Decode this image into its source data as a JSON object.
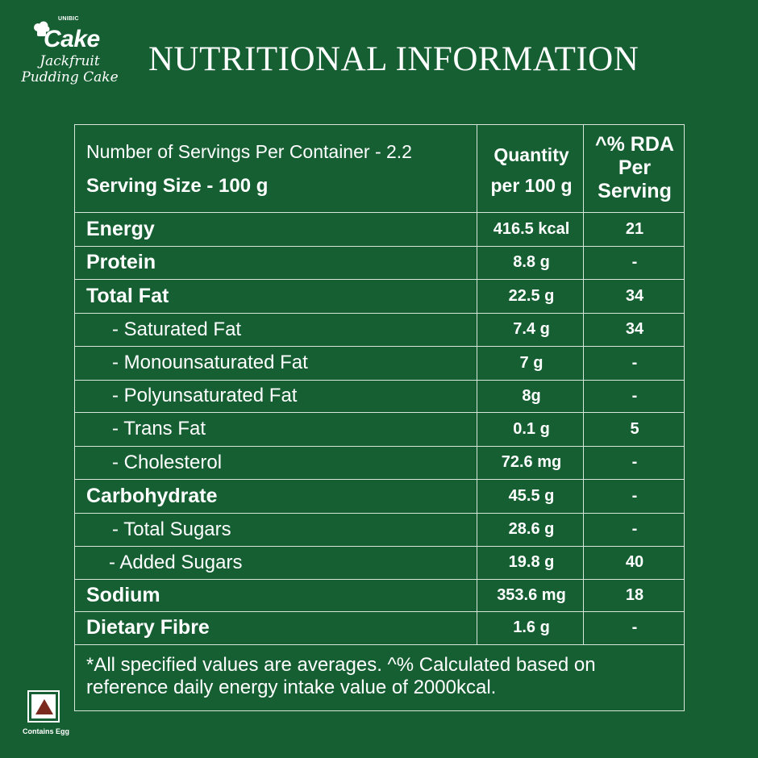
{
  "brand": {
    "company": "UNIBIC",
    "name": "Cake",
    "product_line1": "Jackfruit",
    "product_line2": "Pudding Cake"
  },
  "title": "NUTRITIONAL INFORMATION",
  "header": {
    "servings": "Number of Servings Per Container - 2.2",
    "serving_size": "Serving Size - 100 g",
    "quantity_line1": "Quantity",
    "quantity_line2": "per 100 g",
    "rda_line1": "^% RDA",
    "rda_line2": "Per",
    "rda_line3": "Serving"
  },
  "rows": [
    {
      "nutrient": "Energy",
      "quantity": "416.5 kcal",
      "rda": "21"
    },
    {
      "nutrient": "Protein",
      "quantity": "8.8 g",
      "rda": "-"
    },
    {
      "nutrient": "Total Fat",
      "quantity": "22.5 g",
      "rda": "34"
    },
    {
      "nutrient": "- Saturated Fat",
      "quantity": "7.4 g",
      "rda": "34"
    },
    {
      "nutrient": "- Monounsaturated Fat",
      "quantity": "7 g",
      "rda": "-"
    },
    {
      "nutrient": "- Polyunsaturated Fat",
      "quantity": "8g",
      "rda": "-"
    },
    {
      "nutrient": "- Trans Fat",
      "quantity": "0.1 g",
      "rda": "5"
    },
    {
      "nutrient": "- Cholesterol",
      "quantity": "72.6 mg",
      "rda": "-"
    },
    {
      "nutrient": "Carbohydrate",
      "quantity": "45.5 g",
      "rda": "-"
    },
    {
      "nutrient": "- Total Sugars",
      "quantity": "28.6 g",
      "rda": "-"
    },
    {
      "nutrient": "- Added Sugars",
      "quantity": "19.8 g",
      "rda": "40"
    },
    {
      "nutrient": "Sodium",
      "quantity": "353.6 mg",
      "rda": "18"
    },
    {
      "nutrient": "Dietary Fibre",
      "quantity": "1.6 g",
      "rda": "-"
    }
  ],
  "footnote": "*All specified values are averages. ^% Calculated based on reference daily energy intake value of 2000kcal.",
  "badge": {
    "label": "Contains Egg",
    "icon": "non-veg-triangle-icon"
  },
  "colors": {
    "background": "#165f33",
    "text": "#ffffff",
    "non_veg_mark": "#7a2a1e"
  }
}
